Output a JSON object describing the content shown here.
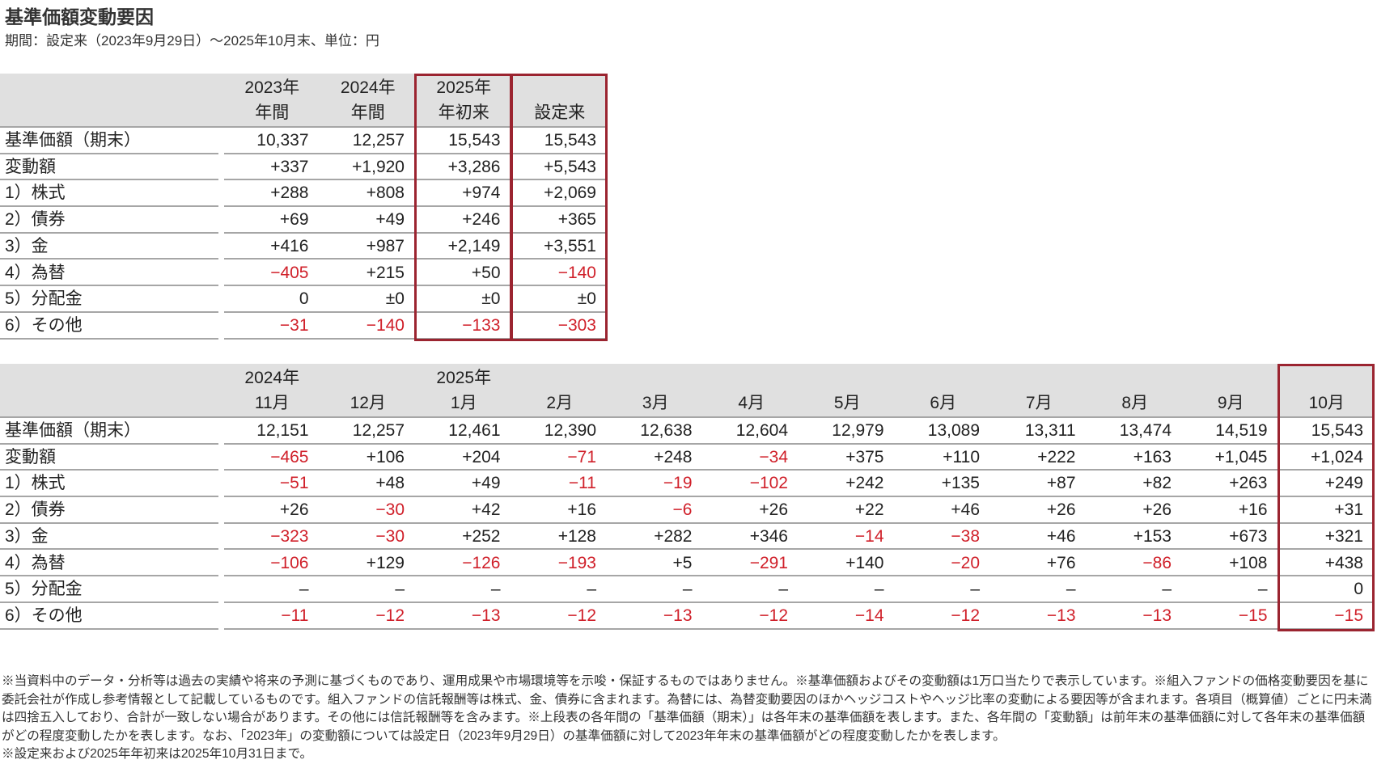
{
  "header": {
    "title": "基準価額変動要因",
    "subtitle": "期間：設定来（2023年9月29日）～2025年10月末、単位：円"
  },
  "table_annual": {
    "highlighted_columns": [
      3,
      4
    ],
    "header_rows": [
      [
        null,
        "2023年",
        "2024年",
        "2025年",
        null
      ],
      [
        null,
        "年間",
        "年間",
        "年初来",
        "設定来"
      ]
    ],
    "rows": [
      [
        "基準価額（期末）",
        "10,337",
        "12,257",
        "15,543",
        "15,543"
      ],
      [
        "変動額",
        "+337",
        "+1,920",
        "+3,286",
        "+5,543"
      ],
      [
        "1）株式",
        "+288",
        "+808",
        "+974",
        "+2,069"
      ],
      [
        "2）債券",
        "+69",
        "+49",
        "+246",
        "+365"
      ],
      [
        "3）金",
        "+416",
        "+987",
        "+2,149",
        "+3,551"
      ],
      [
        "4）為替",
        "−405",
        "+215",
        "+50",
        "−140"
      ],
      [
        "5）分配金",
        "0",
        "±0",
        "±0",
        "±0"
      ],
      [
        "6）その他",
        "−31",
        "−140",
        "−133",
        "−303"
      ]
    ]
  },
  "table_monthly": {
    "highlighted_columns": [
      12
    ],
    "header_rows": [
      [
        null,
        "2024年",
        null,
        "2025年",
        null,
        null,
        null,
        null,
        null,
        null,
        null,
        null,
        null
      ],
      [
        null,
        "11月",
        "12月",
        "1月",
        "2月",
        "3月",
        "4月",
        "5月",
        "6月",
        "7月",
        "8月",
        "9月",
        "10月"
      ]
    ],
    "rows": [
      [
        "基準価額（期末）",
        "12,151",
        "12,257",
        "12,461",
        "12,390",
        "12,638",
        "12,604",
        "12,979",
        "13,089",
        "13,311",
        "13,474",
        "14,519",
        "15,543"
      ],
      [
        "変動額",
        "−465",
        "+106",
        "+204",
        "−71",
        "+248",
        "−34",
        "+375",
        "+110",
        "+222",
        "+163",
        "+1,045",
        "+1,024"
      ],
      [
        "1）株式",
        "−51",
        "+48",
        "+49",
        "−11",
        "−19",
        "−102",
        "+242",
        "+135",
        "+87",
        "+82",
        "+263",
        "+249"
      ],
      [
        "2）債券",
        "+26",
        "−30",
        "+42",
        "+16",
        "−6",
        "+26",
        "+22",
        "+46",
        "+26",
        "+26",
        "+16",
        "+31"
      ],
      [
        "3）金",
        "−323",
        "−30",
        "+252",
        "+128",
        "+282",
        "+346",
        "−14",
        "−38",
        "+46",
        "+153",
        "+673",
        "+321"
      ],
      [
        "4）為替",
        "−106",
        "+129",
        "−126",
        "−193",
        "+5",
        "−291",
        "+140",
        "−20",
        "+76",
        "−86",
        "+108",
        "+438"
      ],
      [
        "5）分配金",
        "–",
        "–",
        "–",
        "–",
        "–",
        "–",
        "–",
        "–",
        "–",
        "–",
        "–",
        "0"
      ],
      [
        "6）その他",
        "−11",
        "−12",
        "−13",
        "−12",
        "−13",
        "−12",
        "−14",
        "−12",
        "−13",
        "−13",
        "−15",
        "−15"
      ]
    ]
  },
  "notes": [
    "※当資料中のデータ・分析等は過去の実績や将来の予測に基づくものであり、運用成果や市場環境等を示唆・保証するものではありません。※基準価額およびその変動額は1万口当たりで表示しています。※組入ファンドの価格変動要因を基に委託会社が作成し参考情報として記載しているものです。組入ファンドの信託報酬等は株式、金、債券に含まれます。為替には、為替変動要因のほかヘッジコストやヘッジ比率の変動による要因等が含まれます。各項目（概算値）ごとに円未満は四捨五入しており、合計が一致しない場合があります。その他には信託報酬等を含みます。※上段表の各年間の「基準価額（期末）」は各年末の基準価額を表します。また、各年間の「変動額」は前年末の基準価額に対して各年末の基準価額がどの程度変動したかを表します。なお、「2023年」の変動額については設定日（2023年9月29日）の基準価額に対して2023年年末の基準価額がどの程度変動したかを表します。",
    "※設定来および2025年年初来は2025年10月31日まで。"
  ]
}
